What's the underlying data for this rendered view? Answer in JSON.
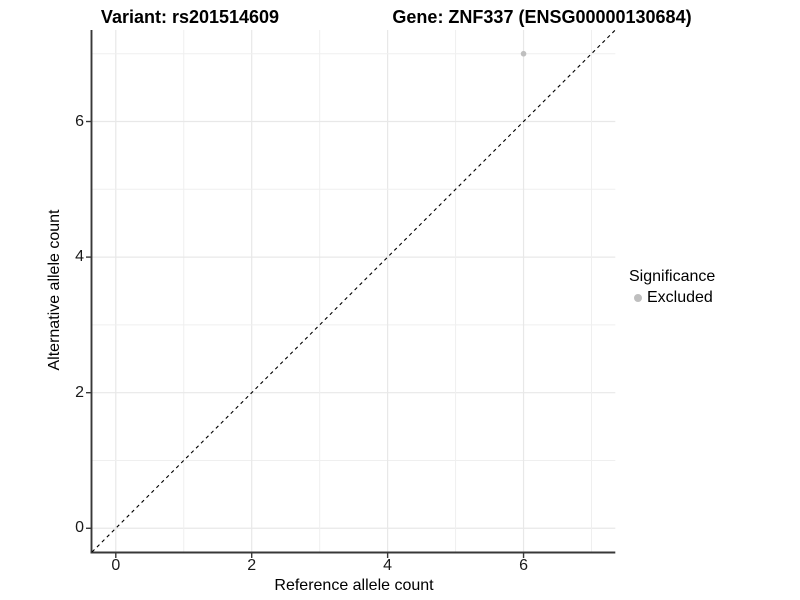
{
  "header": {
    "title_left": "Variant: rs201514609",
    "title_right": "Gene: ZNF337 (ENSG00000130684)"
  },
  "chart_data": {
    "type": "scatter",
    "title_left": "Variant: rs201514609",
    "title_right": "Gene: ZNF337 (ENSG00000130684)",
    "xlabel": "Reference allele count",
    "ylabel": "Alternative allele count",
    "xlim": [
      -0.35,
      7.35
    ],
    "ylim": [
      -0.35,
      7.35
    ],
    "x_ticks": [
      0,
      2,
      4,
      6
    ],
    "y_ticks": [
      0,
      2,
      4,
      6
    ],
    "grid_lines_at": [
      0,
      1,
      2,
      3,
      4,
      5,
      6,
      7
    ],
    "grid": true,
    "reference_line": {
      "equation": "y = x",
      "style": "dashed",
      "color": "#000000"
    },
    "series": [
      {
        "name": "Excluded",
        "color": "#bfbfbf",
        "points": [
          {
            "x": 6,
            "y": 7
          }
        ]
      }
    ],
    "legend": {
      "title": "Significance",
      "position": "right",
      "items": [
        {
          "label": "Excluded",
          "color": "#bfbfbf"
        }
      ]
    }
  },
  "colors": {
    "background": "#ffffff",
    "grid_major": "#e8e8e8",
    "grid_minor": "#efefef",
    "axis_line": "#383838",
    "tick_text": "#1a1a1a",
    "point": "#bfbfbf"
  }
}
